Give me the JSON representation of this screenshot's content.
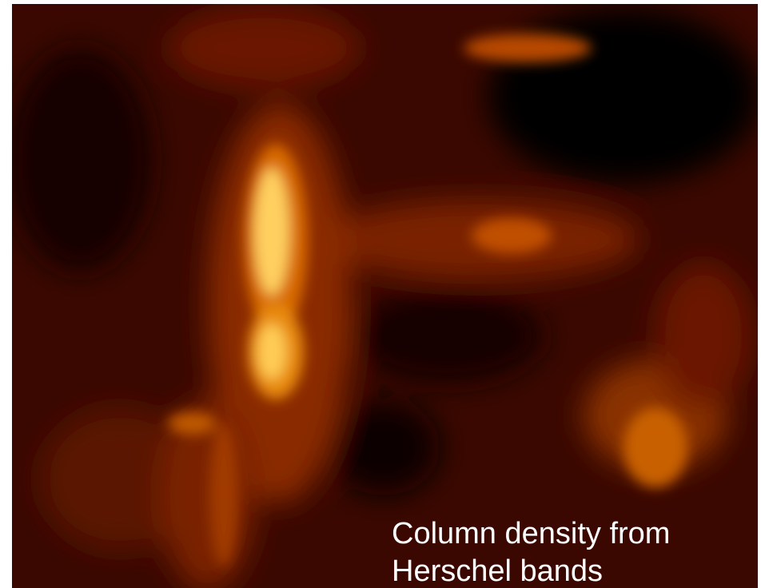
{
  "caption": {
    "lines": [
      "Column density from",
      "Herschel bands"
    ]
  }
}
